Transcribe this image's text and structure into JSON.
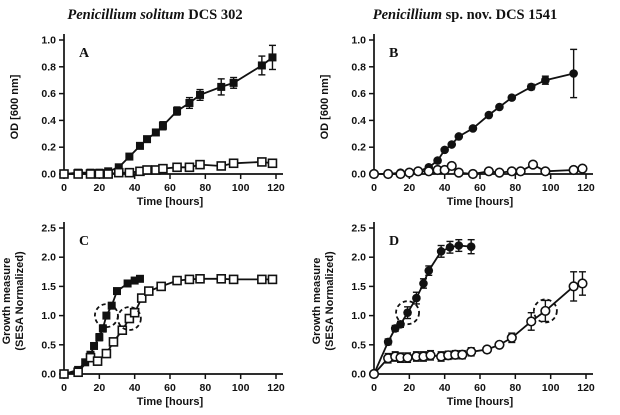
{
  "figure": {
    "column_titles": [
      {
        "italic": "Penicillium solitum",
        "regular": " DCS 302"
      },
      {
        "italic": "Penicillium",
        "regular": " sp. nov. DCS 1541"
      }
    ],
    "ink_color": "#111111",
    "background_color": "#ffffff"
  },
  "chart_data": [
    {
      "type": "line",
      "panel_label": "A",
      "column_title": "Penicillium solitum DCS 302",
      "xlabel": "Time [hours]",
      "ylabel_lines": [
        "OD [600 nm]"
      ],
      "xlim": [
        0,
        120
      ],
      "ylim": [
        0,
        1.0
      ],
      "xticks": [
        "0",
        "20",
        "40",
        "60",
        "80",
        "100",
        "120"
      ],
      "yticks": [
        "0.0",
        "0.2",
        "0.4",
        "0.6",
        "0.8",
        "1.0"
      ],
      "grid": false,
      "legend": "none",
      "series": [
        {
          "name": "filled squares",
          "marker": "filled-square",
          "x": [
            0,
            8,
            15,
            20,
            25,
            31,
            37,
            43,
            47,
            52,
            56,
            64,
            71,
            77,
            89,
            96,
            112,
            118
          ],
          "y": [
            0.0,
            0.01,
            0.01,
            0.01,
            0.02,
            0.05,
            0.13,
            0.21,
            0.26,
            0.31,
            0.36,
            0.47,
            0.53,
            0.59,
            0.65,
            0.68,
            0.81,
            0.87
          ],
          "yerr": [
            0,
            0,
            0,
            0,
            0,
            0,
            0.02,
            0.02,
            0.02,
            0.02,
            0.03,
            0.03,
            0.04,
            0.04,
            0.06,
            0.04,
            0.07,
            0.09
          ]
        },
        {
          "name": "open squares",
          "marker": "open-square",
          "x": [
            0,
            8,
            15,
            20,
            25,
            31,
            37,
            43,
            47,
            52,
            56,
            64,
            71,
            77,
            89,
            96,
            112,
            118
          ],
          "y": [
            0.0,
            0.0,
            0.0,
            0.0,
            0.0,
            0.01,
            0.01,
            0.02,
            0.03,
            0.03,
            0.04,
            0.05,
            0.05,
            0.07,
            0.06,
            0.08,
            0.09,
            0.08
          ],
          "yerr": [
            0,
            0,
            0,
            0,
            0,
            0,
            0,
            0,
            0,
            0,
            0,
            0,
            0,
            0.01,
            0.01,
            0.01,
            0.01,
            0.01
          ]
        }
      ],
      "annotations": []
    },
    {
      "type": "line",
      "panel_label": "B",
      "column_title": "Penicillium sp. nov. DCS 1541",
      "xlabel": "Time [hours]",
      "ylabel_lines": [
        "OD [600 nm]"
      ],
      "xlim": [
        0,
        120
      ],
      "ylim": [
        0,
        1.0
      ],
      "xticks": [
        "0",
        "20",
        "40",
        "60",
        "80",
        "100",
        "120"
      ],
      "yticks": [
        "0.0",
        "0.2",
        "0.4",
        "0.6",
        "0.8",
        "1.0"
      ],
      "grid": false,
      "legend": "none",
      "series": [
        {
          "name": "filled circles",
          "marker": "filled-circle",
          "x": [
            0,
            8,
            15,
            20,
            25,
            31,
            36,
            40,
            44,
            48,
            56,
            65,
            71,
            78,
            89,
            97,
            113
          ],
          "y": [
            0.0,
            0.0,
            0.01,
            0.01,
            0.02,
            0.05,
            0.1,
            0.18,
            0.22,
            0.28,
            0.34,
            0.44,
            0.5,
            0.57,
            0.65,
            0.7,
            0.75
          ],
          "yerr": [
            0,
            0,
            0,
            0,
            0,
            0,
            0,
            0,
            0,
            0,
            0,
            0,
            0,
            0,
            0.02,
            0.03,
            0.18
          ]
        },
        {
          "name": "open circles",
          "marker": "open-circle",
          "x": [
            0,
            8,
            15,
            20,
            25,
            31,
            36,
            40,
            44,
            48,
            56,
            65,
            71,
            78,
            83,
            90,
            97,
            113,
            118
          ],
          "y": [
            0.0,
            0.0,
            0.0,
            0.01,
            0.02,
            0.02,
            0.03,
            0.03,
            0.06,
            0.01,
            0.0,
            0.02,
            0.01,
            0.02,
            0.02,
            0.07,
            0.02,
            0.03,
            0.04
          ],
          "yerr": [
            0,
            0,
            0,
            0,
            0,
            0,
            0,
            0.01,
            0.01,
            0,
            0,
            0,
            0,
            0,
            0,
            0.02,
            0,
            0,
            0
          ]
        }
      ],
      "annotations": []
    },
    {
      "type": "line",
      "panel_label": "C",
      "column_title": "Penicillium solitum DCS 302",
      "xlabel": "Time [hours]",
      "ylabel_lines": [
        "Growth measure",
        "(SESA Normalized)"
      ],
      "xlim": [
        0,
        120
      ],
      "ylim": [
        0,
        2.5
      ],
      "xticks": [
        "0",
        "20",
        "40",
        "60",
        "80",
        "100",
        "120"
      ],
      "yticks": [
        "0.0",
        "0.5",
        "1.0",
        "1.5",
        "2.0",
        "2.5"
      ],
      "grid": false,
      "legend": "none",
      "series": [
        {
          "name": "filled squares",
          "marker": "filled-square",
          "x": [
            0,
            8,
            12,
            15,
            17,
            20,
            22,
            24,
            27,
            30,
            36,
            40,
            43
          ],
          "y": [
            0.0,
            0.07,
            0.2,
            0.33,
            0.48,
            0.63,
            0.78,
            1.0,
            1.17,
            1.42,
            1.55,
            1.6,
            1.63
          ],
          "yerr": [
            0,
            0,
            0,
            0,
            0,
            0.06,
            0.06,
            0,
            0,
            0,
            0.04,
            0.04,
            0.04
          ]
        },
        {
          "name": "open squares",
          "marker": "open-square",
          "x": [
            0,
            8,
            15,
            19,
            24,
            28,
            33,
            37,
            40,
            44,
            48,
            55,
            64,
            71,
            77,
            89,
            96,
            112,
            118
          ],
          "y": [
            0.0,
            0.03,
            0.28,
            0.22,
            0.35,
            0.55,
            0.75,
            0.95,
            1.05,
            1.3,
            1.42,
            1.5,
            1.6,
            1.62,
            1.63,
            1.63,
            1.62,
            1.62,
            1.62
          ],
          "yerr": [
            0,
            0,
            0,
            0,
            0,
            0,
            0,
            0,
            0,
            0,
            0,
            0,
            0.05,
            0.05,
            0.05,
            0.05,
            0.05,
            0.05,
            0.05
          ]
        }
      ],
      "annotations": [
        {
          "shape": "dashed-circle",
          "x": 24,
          "y": 1.0
        },
        {
          "shape": "dashed-circle",
          "x": 37,
          "y": 0.95
        }
      ]
    },
    {
      "type": "line",
      "panel_label": "D",
      "column_title": "Penicillium sp. nov. DCS 1541",
      "xlabel": "Time [hours]",
      "ylabel_lines": [
        "Growth measure",
        "(SESA Normalized)"
      ],
      "xlim": [
        0,
        120
      ],
      "ylim": [
        0,
        2.5
      ],
      "xticks": [
        "0",
        "20",
        "40",
        "60",
        "80",
        "100",
        "120"
      ],
      "yticks": [
        "0.0",
        "0.5",
        "1.0",
        "1.5",
        "2.0",
        "2.5"
      ],
      "grid": false,
      "legend": "none",
      "series": [
        {
          "name": "filled circles",
          "marker": "filled-circle",
          "x": [
            0,
            8,
            12,
            15,
            19,
            24,
            28,
            31,
            38,
            43,
            48,
            55
          ],
          "y": [
            0.0,
            0.55,
            0.78,
            0.85,
            1.05,
            1.3,
            1.55,
            1.77,
            2.1,
            2.17,
            2.2,
            2.18
          ],
          "yerr": [
            0,
            0.05,
            0.05,
            0.05,
            0.1,
            0.1,
            0.08,
            0.08,
            0.1,
            0.1,
            0.1,
            0.12
          ]
        },
        {
          "name": "open circles",
          "marker": "open-circle",
          "x": [
            0,
            8,
            12,
            15,
            19,
            24,
            28,
            32,
            38,
            42,
            46,
            50,
            55,
            64,
            71,
            78,
            89,
            97,
            113,
            118
          ],
          "y": [
            0.0,
            0.27,
            0.3,
            0.28,
            0.28,
            0.3,
            0.3,
            0.32,
            0.3,
            0.32,
            0.33,
            0.33,
            0.38,
            0.42,
            0.5,
            0.62,
            0.9,
            1.08,
            1.5,
            1.55
          ],
          "yerr": [
            0,
            0.08,
            0.08,
            0.08,
            0.08,
            0.08,
            0.08,
            0.08,
            0.08,
            0.07,
            0.07,
            0.07,
            0.07,
            0.05,
            0.05,
            0.08,
            0.15,
            0.18,
            0.25,
            0.2
          ]
        }
      ],
      "annotations": [
        {
          "shape": "dashed-circle",
          "x": 19,
          "y": 1.05
        },
        {
          "shape": "dashed-circle",
          "x": 97,
          "y": 1.08
        }
      ]
    }
  ]
}
